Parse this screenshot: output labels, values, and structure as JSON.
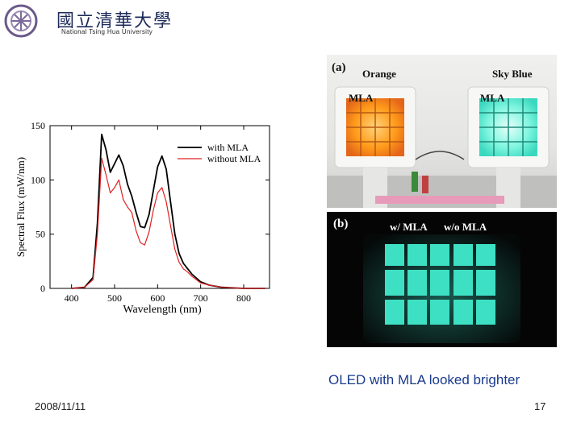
{
  "header": {
    "logo_cn": "國立清華大學",
    "logo_en": "National Tsing Hua University"
  },
  "chart_data": {
    "type": "line",
    "xlabel": "Wavelength (nm)",
    "ylabel": "Spectral Flux (mW/nm)",
    "xlim": [
      350,
      860
    ],
    "ylim": [
      0,
      150
    ],
    "xticks": [
      400,
      500,
      600,
      700,
      800
    ],
    "yticks": [
      0,
      50,
      100,
      150
    ],
    "grid": false,
    "legend_position": "top-right",
    "series": [
      {
        "name": "with MLA",
        "color": "#000000",
        "x": [
          400,
          430,
          450,
          460,
          470,
          480,
          490,
          500,
          510,
          520,
          530,
          540,
          550,
          560,
          570,
          580,
          590,
          600,
          610,
          620,
          630,
          640,
          650,
          660,
          670,
          680,
          700,
          720,
          750,
          800,
          850
        ],
        "y": [
          0,
          1,
          10,
          60,
          142,
          128,
          107,
          115,
          123,
          113,
          96,
          85,
          70,
          57,
          56,
          68,
          90,
          112,
          122,
          110,
          80,
          50,
          32,
          23,
          18,
          13,
          6,
          3,
          1,
          0,
          0
        ]
      },
      {
        "name": "without MLA",
        "color": "#e02020",
        "x": [
          400,
          430,
          450,
          460,
          470,
          480,
          490,
          500,
          510,
          520,
          530,
          540,
          550,
          560,
          570,
          580,
          590,
          600,
          610,
          620,
          630,
          640,
          650,
          660,
          670,
          680,
          700,
          720,
          750,
          800,
          850
        ],
        "y": [
          0,
          1,
          8,
          50,
          120,
          105,
          88,
          93,
          100,
          82,
          75,
          70,
          53,
          42,
          40,
          52,
          72,
          88,
          93,
          80,
          58,
          36,
          24,
          18,
          15,
          11,
          5,
          3,
          1,
          0,
          0
        ]
      }
    ]
  },
  "photo_a": {
    "label": "(a)",
    "left_title": "Orange",
    "right_title": "Sky Blue",
    "left_tag": "MLA",
    "right_tag": "MLA"
  },
  "photo_b": {
    "label": "(b)",
    "left_tag": "w/ MLA",
    "right_tag": "w/o MLA"
  },
  "caption": "OLED with MLA looked brighter",
  "footer": {
    "date": "2008/11/11",
    "page": "17"
  },
  "colors": {
    "caption": "#1a3a8f",
    "orange_glow": "#ff9a1a",
    "skyblue_glow": "#7ff5df",
    "oled_panel": "#3ee0c4"
  }
}
